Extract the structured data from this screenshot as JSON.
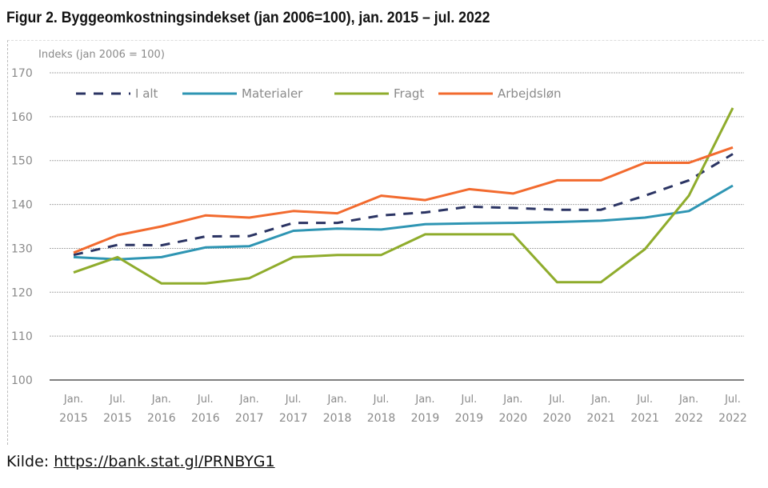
{
  "title": "Figur 2. Byggeomkostningsindekset (jan 2006=100), jan. 2015 – jul. 2022",
  "source": {
    "label": "Kilde:",
    "link": "https://bank.stat.gl/PRNBYG1"
  },
  "chart_data": {
    "type": "line",
    "title": "Figur 2. Byggeomkostningsindekset (jan 2006=100), jan. 2015 – jul. 2022",
    "ylabel": "Indeks (jan 2006 = 100)",
    "ylim": [
      100,
      170
    ],
    "yticks": [
      100,
      110,
      120,
      130,
      140,
      150,
      160,
      170
    ],
    "grid": true,
    "legend": "top",
    "categories": [
      [
        "Jan.",
        "2015"
      ],
      [
        "Jul.",
        "2015"
      ],
      [
        "Jan.",
        "2016"
      ],
      [
        "Jul.",
        "2016"
      ],
      [
        "Jan.",
        "2017"
      ],
      [
        "Jul.",
        "2017"
      ],
      [
        "Jan.",
        "2018"
      ],
      [
        "Jul.",
        "2018"
      ],
      [
        "Jan.",
        "2019"
      ],
      [
        "Jul.",
        "2019"
      ],
      [
        "Jan.",
        "2020"
      ],
      [
        "Jul.",
        "2020"
      ],
      [
        "Jan.",
        "2021"
      ],
      [
        "Jul.",
        "2021"
      ],
      [
        "Jan.",
        "2022"
      ],
      [
        "Jul.",
        "2022"
      ]
    ],
    "series": [
      {
        "name": "I alt",
        "color": "#2b3463",
        "dashed": true,
        "values": [
          128.5,
          130.8,
          130.7,
          132.7,
          132.8,
          135.8,
          135.8,
          137.5,
          138.2,
          139.5,
          139.2,
          138.8,
          138.8,
          142,
          145.5,
          151.5
        ]
      },
      {
        "name": "Materialer",
        "color": "#2e95b3",
        "dashed": false,
        "values": [
          128,
          127.5,
          128,
          130.2,
          130.5,
          134,
          134.5,
          134.3,
          135.5,
          135.7,
          135.8,
          136,
          136.3,
          137,
          138.5,
          144.3
        ]
      },
      {
        "name": "Fragt",
        "color": "#8fac2c",
        "dashed": false,
        "values": [
          124.5,
          128,
          122,
          122,
          123.2,
          128,
          128.5,
          128.5,
          133.2,
          133.2,
          133.2,
          122.3,
          122.3,
          129.8,
          142,
          162
        ]
      },
      {
        "name": "Arbejdsløn",
        "color": "#f26a2e",
        "dashed": false,
        "values": [
          129,
          133,
          135,
          137.5,
          137,
          138.5,
          138,
          142,
          141,
          143.5,
          142.5,
          145.5,
          145.5,
          149.5,
          149.5,
          153
        ]
      }
    ]
  }
}
